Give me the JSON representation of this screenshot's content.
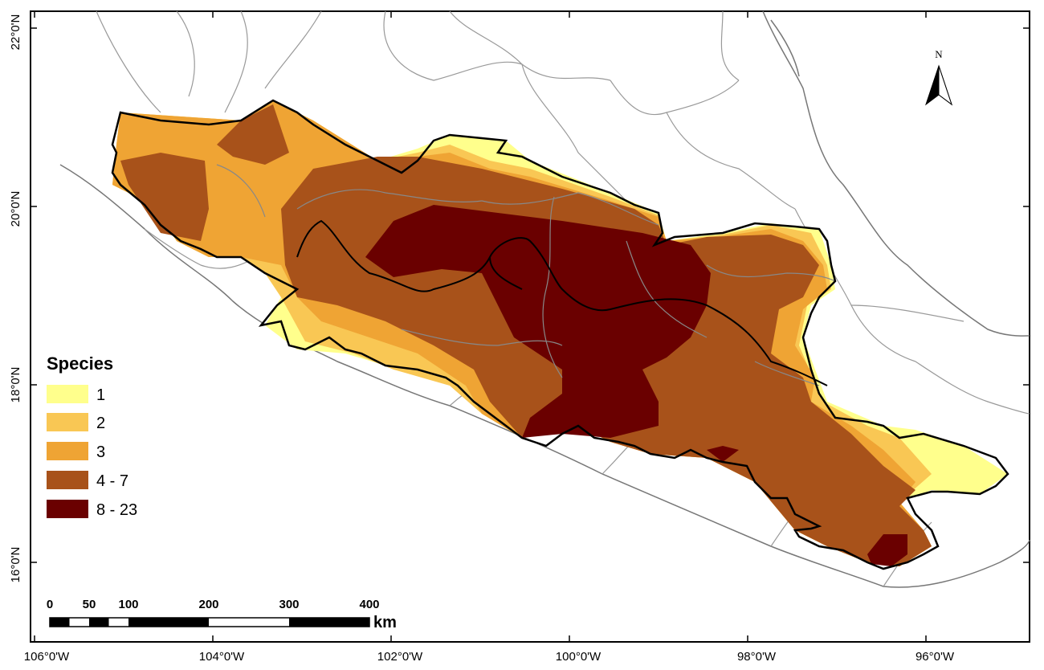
{
  "map": {
    "longitude_labels": [
      "106°0'W",
      "104°0'W",
      "102°0'W",
      "100°0'W",
      "98°0'W",
      "96°0'W"
    ],
    "latitude_labels": [
      "22°0'N",
      "20°0'N",
      "18°0'N",
      "16°0'N"
    ],
    "north_arrow_label": "N"
  },
  "legend": {
    "title": "Species",
    "items": [
      {
        "label": "1",
        "color": "#ffff8c"
      },
      {
        "label": "2",
        "color": "#f9c754"
      },
      {
        "label": "3",
        "color": "#efa434"
      },
      {
        "label": "4 - 7",
        "color": "#a8521a"
      },
      {
        "label": "8 - 23",
        "color": "#6a0000"
      }
    ]
  },
  "scale_bar": {
    "labels": [
      "0",
      "50",
      "100",
      "200",
      "300",
      "400"
    ],
    "unit": "km"
  },
  "colors": {
    "land_outline": "#777777",
    "state_border": "#999999",
    "region_border": "#000000"
  }
}
